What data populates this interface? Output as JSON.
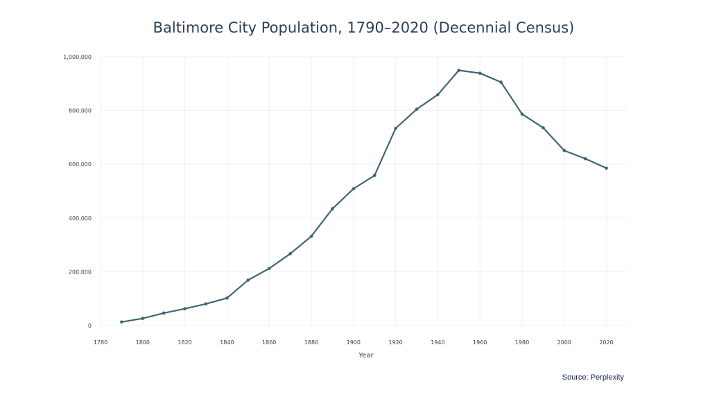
{
  "chart_data": {
    "type": "line",
    "title": "Baltimore City Population, 1790–2020 (Decennial Census)",
    "xlabel": "Year",
    "ylabel": "",
    "xlim": [
      1780,
      2030
    ],
    "ylim": [
      0,
      1000000
    ],
    "x_ticks": [
      1780,
      1800,
      1820,
      1840,
      1860,
      1880,
      1900,
      1920,
      1940,
      1960,
      1980,
      2000,
      2020
    ],
    "y_ticks": [
      0,
      200000,
      400000,
      600000,
      800000,
      1000000
    ],
    "y_tick_labels": [
      "0",
      "200,000",
      "400,000",
      "600,000",
      "800,000",
      "1,000,000"
    ],
    "grid": true,
    "series": [
      {
        "x": [
          1790,
          1800,
          1810,
          1820,
          1830,
          1840,
          1850,
          1860,
          1870,
          1880,
          1890,
          1900,
          1910,
          1920,
          1930,
          1940,
          1950,
          1960,
          1970,
          1980,
          1990,
          2000,
          2010,
          2020
        ],
        "y": [
          13503,
          26514,
          46555,
          62738,
          80620,
          102313,
          169054,
          212418,
          267354,
          332313,
          434439,
          508957,
          558485,
          733826,
          804874,
          859100,
          949708,
          939024,
          905759,
          786775,
          736014,
          651154,
          620961,
          585708
        ],
        "color": "#3f6670"
      }
    ]
  },
  "source": "Source: Perplexity"
}
